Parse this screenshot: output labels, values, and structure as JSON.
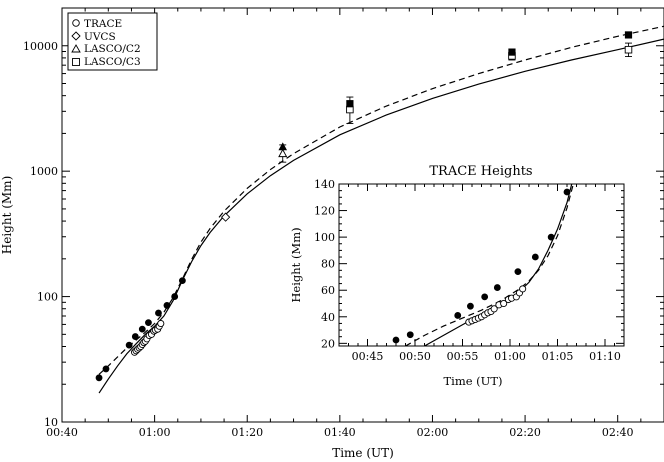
{
  "chart_data": [
    {
      "type": "scatter",
      "xlabel": "Time (UT)",
      "ylabel": "Height (Mm)",
      "yscale": "log",
      "xlim": [
        "00:40",
        "02:50"
      ],
      "ylim": [
        10,
        20000
      ],
      "x_ticks": [
        "00:40",
        "01:00",
        "01:20",
        "01:40",
        "02:00",
        "02:20",
        "02:40"
      ],
      "y_ticks": [
        "10",
        "100",
        "1000",
        "10000"
      ],
      "legend": {
        "position": "top-left",
        "entries": [
          {
            "marker": "circle",
            "label": "TRACE"
          },
          {
            "marker": "diamond",
            "label": "UVCS"
          },
          {
            "marker": "triangle",
            "label": "LASCO/C2"
          },
          {
            "marker": "square",
            "label": "LASCO/C3"
          }
        ]
      },
      "series": [
        {
          "marker": "circle",
          "fill": "open",
          "points": [
            [
              "00:55:40",
              36
            ],
            [
              "00:56:00",
              37
            ],
            [
              "00:56:20",
              38
            ],
            [
              "00:56:40",
              39
            ],
            [
              "00:57:00",
              40
            ],
            [
              "00:57:20",
              41.5
            ],
            [
              "00:57:40",
              43
            ],
            [
              "00:58:00",
              44
            ],
            [
              "00:58:20",
              46
            ],
            [
              "00:58:50",
              49
            ],
            [
              "00:59:20",
              50
            ],
            [
              "00:59:50",
              53
            ],
            [
              "01:00:10",
              54
            ],
            [
              "01:00:40",
              55
            ],
            [
              "01:01:00",
              58
            ],
            [
              "01:01:20",
              61
            ]
          ]
        },
        {
          "marker": "circle",
          "fill": "filled",
          "points": [
            [
              "00:48:00",
              22.5
            ],
            [
              "00:49:30",
              26.5
            ],
            [
              "00:54:30",
              41
            ],
            [
              "00:55:50",
              48
            ],
            [
              "00:57:20",
              55
            ],
            [
              "00:58:40",
              62
            ],
            [
              "01:00:50",
              74
            ],
            [
              "01:02:40",
              85
            ],
            [
              "01:04:20",
              100
            ],
            [
              "01:06:00",
              134
            ]
          ]
        },
        {
          "marker": "diamond",
          "fill": "open",
          "points": [
            [
              "01:15:20",
              430
            ]
          ]
        },
        {
          "marker": "triangle",
          "fill": "open",
          "points": [
            [
              "01:27:40",
              1380
            ]
          ],
          "error": [
            1180,
            1620
          ]
        },
        {
          "marker": "triangle",
          "fill": "filled",
          "points": [
            [
              "01:27:40",
              1560
            ]
          ]
        },
        {
          "marker": "square",
          "fill": "open",
          "points": [
            [
              "01:42:10",
              3100
            ],
            [
              "02:17:10",
              8300
            ],
            [
              "02:42:20",
              9300
            ]
          ],
          "error": [
            [
              2400,
              3900
            ],
            [
              7700,
              8900
            ],
            [
              8200,
              10500
            ]
          ]
        },
        {
          "marker": "square",
          "fill": "filled",
          "points": [
            [
              "01:42:10",
              3450
            ],
            [
              "02:17:10",
              8900
            ],
            [
              "02:42:20",
              12200
            ]
          ]
        }
      ],
      "fits": [
        {
          "style": "solid",
          "points": [
            [
              "00:48:00",
              17
            ],
            [
              "00:50:00",
              22
            ],
            [
              "00:52:00",
              28
            ],
            [
              "00:54:00",
              35
            ],
            [
              "00:56:00",
              42
            ],
            [
              "00:58:00",
              50
            ],
            [
              "01:00:00",
              58
            ],
            [
              "01:02:00",
              70
            ],
            [
              "01:04:00",
              93
            ],
            [
              "01:06:00",
              135
            ],
            [
              "01:08:00",
              190
            ],
            [
              "01:10:00",
              255
            ],
            [
              "01:12:00",
              325
            ],
            [
              "01:15:00",
              440
            ],
            [
              "01:20:00",
              660
            ],
            [
              "01:25:00",
              920
            ],
            [
              "01:30:00",
              1220
            ],
            [
              "01:40:00",
              1950
            ],
            [
              "01:50:00",
              2800
            ],
            [
              "02:00:00",
              3800
            ],
            [
              "02:10:00",
              4950
            ],
            [
              "02:20:00",
              6250
            ],
            [
              "02:30:00",
              7700
            ],
            [
              "02:40:00",
              9300
            ],
            [
              "02:50:00",
              11300
            ]
          ]
        },
        {
          "style": "dashed",
          "points": [
            [
              "00:48:00",
              24
            ],
            [
              "00:50:00",
              28
            ],
            [
              "00:52:00",
              33
            ],
            [
              "00:54:00",
              39
            ],
            [
              "00:56:00",
              45
            ],
            [
              "00:58:00",
              52
            ],
            [
              "01:00:00",
              61
            ],
            [
              "01:02:00",
              75
            ],
            [
              "01:04:00",
              98
            ],
            [
              "01:06:00",
              138
            ],
            [
              "01:08:00",
              198
            ],
            [
              "01:10:00",
              272
            ],
            [
              "01:12:00",
              350
            ],
            [
              "01:15:00",
              480
            ],
            [
              "01:20:00",
              730
            ],
            [
              "01:25:00",
              1030
            ],
            [
              "01:30:00",
              1380
            ],
            [
              "01:40:00",
              2250
            ],
            [
              "01:50:00",
              3300
            ],
            [
              "02:00:00",
              4550
            ],
            [
              "02:10:00",
              6000
            ],
            [
              "02:20:00",
              7700
            ],
            [
              "02:30:00",
              9700
            ],
            [
              "02:40:00",
              11900
            ],
            [
              "02:50:00",
              14300
            ]
          ]
        }
      ]
    },
    {
      "type": "scatter",
      "title": "TRACE Heights",
      "xlabel": "Time (UT)",
      "ylabel": "Height (Mm)",
      "xlim": [
        "00:42",
        "01:12"
      ],
      "ylim": [
        18,
        140
      ],
      "x_ticks": [
        "00:45",
        "00:50",
        "00:55",
        "01:00",
        "01:05",
        "01:10"
      ],
      "y_ticks": [
        "20",
        "40",
        "60",
        "80",
        "100",
        "120",
        "140"
      ],
      "series": [
        {
          "marker": "circle",
          "fill": "open",
          "points": [
            [
              "00:55:40",
              36
            ],
            [
              "00:56:00",
              37
            ],
            [
              "00:56:20",
              38
            ],
            [
              "00:56:40",
              39
            ],
            [
              "00:57:00",
              40
            ],
            [
              "00:57:20",
              41.5
            ],
            [
              "00:57:40",
              43
            ],
            [
              "00:58:00",
              44
            ],
            [
              "00:58:20",
              46
            ],
            [
              "00:58:50",
              49
            ],
            [
              "00:59:20",
              50
            ],
            [
              "00:59:50",
              53
            ],
            [
              "01:00:10",
              54
            ],
            [
              "01:00:40",
              55
            ],
            [
              "01:01:00",
              58
            ],
            [
              "01:01:20",
              61
            ]
          ]
        },
        {
          "marker": "circle",
          "fill": "filled",
          "points": [
            [
              "00:48:00",
              22.5
            ],
            [
              "00:49:30",
              26.5
            ],
            [
              "00:54:30",
              41
            ],
            [
              "00:55:50",
              48
            ],
            [
              "00:57:20",
              55
            ],
            [
              "00:58:40",
              62
            ],
            [
              "01:00:50",
              74
            ],
            [
              "01:02:40",
              85
            ],
            [
              "01:04:20",
              100
            ],
            [
              "01:06:00",
              134
            ]
          ]
        }
      ],
      "fits": [
        {
          "style": "solid",
          "points": [
            [
              "00:51:00",
              18
            ],
            [
              "00:53:00",
              26
            ],
            [
              "00:55:00",
              34
            ],
            [
              "00:57:00",
              42
            ],
            [
              "00:59:00",
              50
            ],
            [
              "01:00:00",
              54
            ],
            [
              "01:01:00",
              59
            ],
            [
              "01:02:00",
              66
            ],
            [
              "01:03:00",
              76
            ],
            [
              "01:04:00",
              90
            ],
            [
              "01:05:00",
              106
            ],
            [
              "01:06:00",
              126
            ],
            [
              "01:06:30",
              140
            ]
          ]
        },
        {
          "style": "dashed",
          "points": [
            [
              "00:49:00",
              18
            ],
            [
              "00:51:00",
              26
            ],
            [
              "00:53:00",
              33
            ],
            [
              "00:55:00",
              39
            ],
            [
              "00:57:00",
              45
            ],
            [
              "00:59:00",
              52
            ],
            [
              "01:01:00",
              61
            ],
            [
              "01:02:00",
              67
            ],
            [
              "01:03:00",
              75
            ],
            [
              "01:04:00",
              86
            ],
            [
              "01:05:00",
              101
            ],
            [
              "01:06:00",
              122
            ],
            [
              "01:06:40",
              140
            ]
          ]
        }
      ]
    }
  ]
}
